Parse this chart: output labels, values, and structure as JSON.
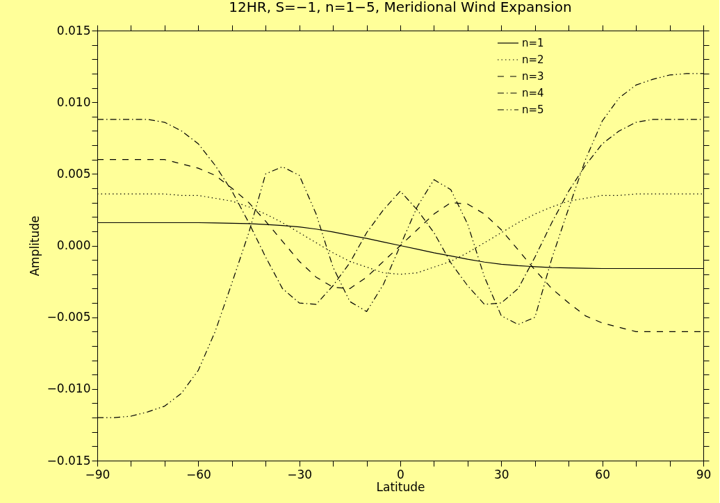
{
  "chart_data": {
    "type": "line",
    "title": "12HR, S=−1, n=1−5, Meridional Wind Expansion",
    "xlabel": "Latitude",
    "ylabel": "Amplitude",
    "x": [
      -90,
      -85,
      -80,
      -75,
      -70,
      -65,
      -60,
      -55,
      -50,
      -45,
      -40,
      -35,
      -30,
      -25,
      -20,
      -15,
      -10,
      -5,
      0,
      5,
      10,
      15,
      20,
      25,
      30,
      35,
      40,
      45,
      50,
      55,
      60,
      65,
      70,
      75,
      80,
      85,
      90
    ],
    "series": [
      {
        "name": "n=1",
        "color": "#000000",
        "line_style": "solid",
        "values": [
          0.0016,
          0.0016,
          0.0016,
          0.0016,
          0.0016,
          0.0016,
          0.0016,
          0.00158,
          0.00156,
          0.00153,
          0.00147,
          0.0014,
          0.0013,
          0.00115,
          0.00095,
          0.00072,
          0.0005,
          0.00025,
          0,
          -0.00025,
          -0.0005,
          -0.00072,
          -0.00095,
          -0.00115,
          -0.0013,
          -0.0014,
          -0.00147,
          -0.00153,
          -0.00156,
          -0.00158,
          -0.0016,
          -0.0016,
          -0.0016,
          -0.0016,
          -0.0016,
          -0.0016,
          -0.0016
        ]
      },
      {
        "name": "n=2",
        "color": "#000000",
        "line_style": "dotted",
        "values": [
          0.0036,
          0.0036,
          0.0036,
          0.0036,
          0.0036,
          0.0035,
          0.0035,
          0.0033,
          0.0031,
          0.0027,
          0.0022,
          0.0016,
          0.0009,
          0.0002,
          -0.0005,
          -0.0011,
          -0.0015,
          -0.0019,
          -0.002,
          -0.0019,
          -0.0015,
          -0.0011,
          -0.0005,
          0.0002,
          0.0009,
          0.0016,
          0.0022,
          0.0027,
          0.0031,
          0.0033,
          0.0035,
          0.0035,
          0.0036,
          0.0036,
          0.0036,
          0.0036,
          0.0036
        ]
      },
      {
        "name": "n=3",
        "color": "#000000",
        "line_style": "dashed",
        "values": [
          0.006,
          0.006,
          0.006,
          0.006,
          0.006,
          0.0057,
          0.0054,
          0.0049,
          0.004,
          0.003,
          0.0017,
          0.0003,
          -0.0011,
          -0.0022,
          -0.0029,
          -0.003,
          -0.0022,
          -0.0011,
          0,
          0.0011,
          0.0022,
          0.003,
          0.0029,
          0.0022,
          0.0011,
          -0.0003,
          -0.0017,
          -0.003,
          -0.004,
          -0.0049,
          -0.0054,
          -0.0057,
          -0.006,
          -0.006,
          -0.006,
          -0.006,
          -0.006
        ]
      },
      {
        "name": "n=4",
        "color": "#000000",
        "line_style": "dashdot",
        "values": [
          0.0088,
          0.0088,
          0.0088,
          0.0088,
          0.0086,
          0.008,
          0.0071,
          0.0056,
          0.0038,
          0.0016,
          -0.0008,
          -0.003,
          -0.004,
          -0.0041,
          -0.0028,
          -0.0012,
          0.0009,
          0.0025,
          0.0038,
          0.0025,
          0.0009,
          -0.0012,
          -0.0028,
          -0.0041,
          -0.004,
          -0.003,
          -0.0008,
          0.0016,
          0.0038,
          0.0056,
          0.0071,
          0.008,
          0.0086,
          0.0088,
          0.0088,
          0.0088,
          0.0088
        ]
      },
      {
        "name": "n=5",
        "color": "#000000",
        "line_style": "dashdotdot",
        "values": [
          -0.012,
          -0.012,
          -0.0119,
          -0.0116,
          -0.0112,
          -0.0103,
          -0.0087,
          -0.006,
          -0.0026,
          0.0009,
          0.005,
          0.0055,
          0.0049,
          0.0022,
          -0.0015,
          -0.0039,
          -0.0046,
          -0.0027,
          0,
          0.0027,
          0.0046,
          0.0039,
          0.0015,
          -0.0022,
          -0.0049,
          -0.0055,
          -0.005,
          -0.0009,
          0.0026,
          0.006,
          0.0087,
          0.0103,
          0.0112,
          0.0116,
          0.0119,
          0.012,
          0.012
        ]
      }
    ],
    "xlim": [
      -90,
      90
    ],
    "xticks": [
      {
        "value": -90,
        "label": "−90"
      },
      {
        "value": -80,
        "label": null
      },
      {
        "value": -70,
        "label": null
      },
      {
        "value": -60,
        "label": "−60"
      },
      {
        "value": -50,
        "label": null
      },
      {
        "value": -40,
        "label": null
      },
      {
        "value": -30,
        "label": "−30"
      },
      {
        "value": -20,
        "label": null
      },
      {
        "value": -10,
        "label": null
      },
      0,
      {
        "value": 10,
        "label": null
      },
      {
        "value": 20,
        "label": null
      },
      30,
      {
        "value": 40,
        "label": null
      },
      {
        "value": 50,
        "label": null
      },
      60,
      {
        "value": 70,
        "label": null
      },
      {
        "value": 80,
        "label": null
      },
      90
    ],
    "ylim": [
      -0.015,
      0.015
    ],
    "yticks": [
      {
        "value": -0.015,
        "label": "−0.015"
      },
      {
        "value": -0.014,
        "label": null
      },
      {
        "value": -0.013,
        "label": null
      },
      {
        "value": -0.012,
        "label": null
      },
      {
        "value": -0.011,
        "label": null
      },
      {
        "value": -0.01,
        "label": "−0.010"
      },
      {
        "value": -0.009,
        "label": null
      },
      {
        "value": -0.008,
        "label": null
      },
      {
        "value": -0.007,
        "label": null
      },
      {
        "value": -0.006,
        "label": null
      },
      {
        "value": -0.005,
        "label": "−0.005"
      },
      {
        "value": -0.004,
        "label": null
      },
      {
        "value": -0.003,
        "label": null
      },
      {
        "value": -0.002,
        "label": null
      },
      {
        "value": -0.001,
        "label": null
      },
      {
        "value": 0,
        "label": "0.000"
      },
      {
        "value": 0.001,
        "label": null
      },
      {
        "value": 0.002,
        "label": null
      },
      {
        "value": 0.003,
        "label": null
      },
      {
        "value": 0.004,
        "label": null
      },
      {
        "value": 0.005,
        "label": "0.005"
      },
      {
        "value": 0.006,
        "label": null
      },
      {
        "value": 0.007,
        "label": null
      },
      {
        "value": 0.008,
        "label": null
      },
      {
        "value": 0.009,
        "label": null
      },
      {
        "value": 0.01,
        "label": "0.010"
      },
      {
        "value": 0.011,
        "label": null
      },
      {
        "value": 0.012,
        "label": null
      },
      {
        "value": 0.013,
        "label": null
      },
      {
        "value": 0.014,
        "label": null
      },
      {
        "value": 0.015,
        "label": "0.015"
      }
    ],
    "grid": false,
    "legend": "top right",
    "marker": "none"
  }
}
